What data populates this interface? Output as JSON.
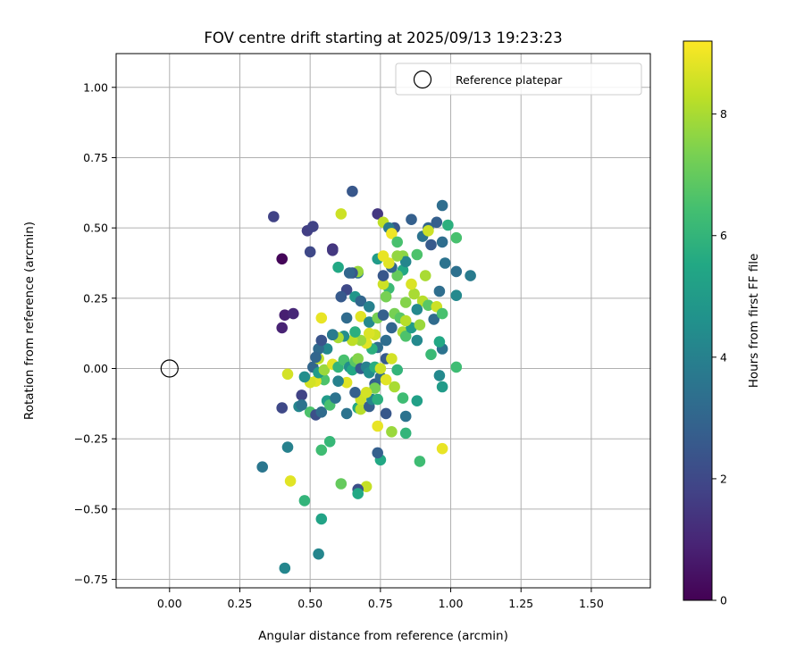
{
  "chart_data": {
    "type": "scatter",
    "title": "FOV centre drift starting at 2025/09/13 19:23:23",
    "xlabel": "Angular distance from reference (arcmin)",
    "ylabel": "Rotation from reference (arcmin)",
    "colorbar_label": "Hours from first FF file",
    "xlim": [
      -0.19,
      1.71
    ],
    "ylim": [
      -0.78,
      1.12
    ],
    "clim": [
      0,
      9.2
    ],
    "colormap": "viridis",
    "grid": true,
    "legend_position": "top-right",
    "x_ticks": [
      "0.00",
      "0.25",
      "0.50",
      "0.75",
      "1.00",
      "1.25",
      "1.50"
    ],
    "y_ticks": [
      "−0.75",
      "−0.50",
      "−0.25",
      "0.00",
      "0.25",
      "0.50",
      "0.75",
      "1.00"
    ],
    "colorbar_ticks": [
      "0",
      "2",
      "4",
      "6",
      "8"
    ],
    "reference": {
      "name": "Reference platepar",
      "x": 0.0,
      "y": 0.0
    },
    "points": [
      [
        0.4,
        0.39,
        0.1
      ],
      [
        0.41,
        0.19,
        0.8
      ],
      [
        0.44,
        0.195,
        1.0
      ],
      [
        0.4,
        0.145,
        0.9
      ],
      [
        0.37,
        0.54,
        1.8
      ],
      [
        0.49,
        0.49,
        1.7
      ],
      [
        0.51,
        0.505,
        1.8
      ],
      [
        0.5,
        0.415,
        2.0
      ],
      [
        0.58,
        0.425,
        1.3
      ],
      [
        0.58,
        0.42,
        1.5
      ],
      [
        0.65,
        0.63,
        2.5
      ],
      [
        0.74,
        0.55,
        1.5
      ],
      [
        0.8,
        0.5,
        2.5
      ],
      [
        0.86,
        0.53,
        2.8
      ],
      [
        0.97,
        0.58,
        3.3
      ],
      [
        0.92,
        0.5,
        3.0
      ],
      [
        0.95,
        0.52,
        2.8
      ],
      [
        0.99,
        0.51,
        5.8
      ],
      [
        1.02,
        0.465,
        6.5
      ],
      [
        0.9,
        0.47,
        3.5
      ],
      [
        0.93,
        0.44,
        2.6
      ],
      [
        0.98,
        0.375,
        3.5
      ],
      [
        1.02,
        0.345,
        3.4
      ],
      [
        1.07,
        0.33,
        3.8
      ],
      [
        1.02,
        0.26,
        4.3
      ],
      [
        0.96,
        0.275,
        3.3
      ],
      [
        0.94,
        0.175,
        3.2
      ],
      [
        0.97,
        0.07,
        3.5
      ],
      [
        1.02,
        0.005,
        6.3
      ],
      [
        0.96,
        0.095,
        5.5
      ],
      [
        0.93,
        0.05,
        6.2
      ],
      [
        0.96,
        -0.025,
        4.3
      ],
      [
        0.97,
        -0.065,
        5.0
      ],
      [
        0.88,
        -0.115,
        5.2
      ],
      [
        0.84,
        -0.17,
        3.5
      ],
      [
        0.84,
        -0.23,
        6.0
      ],
      [
        0.89,
        -0.33,
        6.3
      ],
      [
        0.97,
        -0.285,
        8.9
      ],
      [
        0.79,
        -0.225,
        7.8
      ],
      [
        0.74,
        -0.205,
        8.9
      ],
      [
        0.75,
        -0.325,
        5.5
      ],
      [
        0.74,
        -0.3,
        2.8
      ],
      [
        0.7,
        -0.42,
        8.4
      ],
      [
        0.67,
        -0.43,
        2.2
      ],
      [
        0.67,
        -0.445,
        5.5
      ],
      [
        0.61,
        -0.41,
        7.0
      ],
      [
        0.57,
        -0.26,
        6.1
      ],
      [
        0.54,
        -0.29,
        6.3
      ],
      [
        0.54,
        -0.535,
        5.3
      ],
      [
        0.53,
        -0.66,
        4.2
      ],
      [
        0.48,
        -0.47,
        6.0
      ],
      [
        0.43,
        -0.4,
        8.8
      ],
      [
        0.42,
        -0.28,
        4.0
      ],
      [
        0.33,
        -0.35,
        3.6
      ],
      [
        0.41,
        -0.71,
        4.2
      ],
      [
        0.4,
        -0.14,
        2.0
      ],
      [
        0.47,
        -0.095,
        1.8
      ],
      [
        0.46,
        -0.135,
        4.2
      ],
      [
        0.5,
        -0.155,
        6.6
      ],
      [
        0.52,
        -0.165,
        2.2
      ],
      [
        0.54,
        -0.155,
        3.2
      ],
      [
        0.56,
        -0.115,
        5.0
      ],
      [
        0.57,
        -0.13,
        6.5
      ],
      [
        0.59,
        -0.105,
        3.5
      ],
      [
        0.63,
        -0.16,
        3.5
      ],
      [
        0.67,
        -0.14,
        5.5
      ],
      [
        0.68,
        -0.145,
        8.2
      ],
      [
        0.68,
        -0.11,
        8.5
      ],
      [
        0.71,
        -0.135,
        2.8
      ],
      [
        0.72,
        -0.11,
        4.2
      ],
      [
        0.74,
        -0.11,
        5.8
      ],
      [
        0.77,
        -0.16,
        2.5
      ],
      [
        0.8,
        -0.065,
        8.0
      ],
      [
        0.83,
        -0.105,
        6.3
      ],
      [
        0.73,
        -0.055,
        2.8
      ],
      [
        0.75,
        -0.03,
        3.2
      ],
      [
        0.77,
        -0.04,
        8.8
      ],
      [
        0.73,
        -0.07,
        7.3
      ],
      [
        0.7,
        -0.085,
        8.6
      ],
      [
        0.66,
        -0.085,
        2.8
      ],
      [
        0.63,
        -0.05,
        8.8
      ],
      [
        0.6,
        -0.045,
        4.0
      ],
      [
        0.55,
        -0.04,
        6.6
      ],
      [
        0.52,
        -0.045,
        8.8
      ],
      [
        0.5,
        -0.05,
        8.6
      ],
      [
        0.48,
        -0.03,
        4.5
      ],
      [
        0.47,
        -0.13,
        3.5
      ],
      [
        0.42,
        -0.02,
        8.6
      ],
      [
        0.51,
        0.005,
        3.0
      ],
      [
        0.53,
        -0.015,
        5.0
      ],
      [
        0.53,
        0.035,
        8.3
      ],
      [
        0.55,
        -0.005,
        7.8
      ],
      [
        0.58,
        0.015,
        8.8
      ],
      [
        0.6,
        0.005,
        6.0
      ],
      [
        0.62,
        0.03,
        6.5
      ],
      [
        0.64,
        0.005,
        4.5
      ],
      [
        0.65,
        -0.005,
        5.5
      ],
      [
        0.66,
        0.025,
        6.8
      ],
      [
        0.67,
        0.035,
        7.5
      ],
      [
        0.68,
        0.0,
        2.6
      ],
      [
        0.7,
        0.005,
        4.0
      ],
      [
        0.71,
        -0.015,
        4.5
      ],
      [
        0.73,
        0.005,
        5.7
      ],
      [
        0.75,
        0.0,
        8.5
      ],
      [
        0.77,
        0.035,
        2.6
      ],
      [
        0.79,
        0.035,
        8.6
      ],
      [
        0.81,
        -0.005,
        6.0
      ],
      [
        0.74,
        0.075,
        3.3
      ],
      [
        0.72,
        0.07,
        5.8
      ],
      [
        0.7,
        0.09,
        8.8
      ],
      [
        0.73,
        0.12,
        8.5
      ],
      [
        0.68,
        0.1,
        7.8
      ],
      [
        0.65,
        0.1,
        8.3
      ],
      [
        0.62,
        0.115,
        4.5
      ],
      [
        0.6,
        0.11,
        8.0
      ],
      [
        0.58,
        0.12,
        2.6
      ],
      [
        0.56,
        0.07,
        4.3
      ],
      [
        0.53,
        0.07,
        3.2
      ],
      [
        0.54,
        0.1,
        2.4
      ],
      [
        0.52,
        0.04,
        3.0
      ],
      [
        0.54,
        0.18,
        8.9
      ],
      [
        0.58,
        0.12,
        3.8
      ],
      [
        0.63,
        0.18,
        3.2
      ],
      [
        0.66,
        0.13,
        5.8
      ],
      [
        0.68,
        0.185,
        8.8
      ],
      [
        0.71,
        0.165,
        4.3
      ],
      [
        0.71,
        0.125,
        8.7
      ],
      [
        0.74,
        0.18,
        7.3
      ],
      [
        0.77,
        0.1,
        3.3
      ],
      [
        0.79,
        0.145,
        3.0
      ],
      [
        0.8,
        0.195,
        7.3
      ],
      [
        0.82,
        0.18,
        6.8
      ],
      [
        0.83,
        0.13,
        8.0
      ],
      [
        0.84,
        0.115,
        6.6
      ],
      [
        0.86,
        0.145,
        5.0
      ],
      [
        0.88,
        0.1,
        4.3
      ],
      [
        0.89,
        0.155,
        7.8
      ],
      [
        0.9,
        0.24,
        8.2
      ],
      [
        0.92,
        0.225,
        6.8
      ],
      [
        0.95,
        0.22,
        8.5
      ],
      [
        0.97,
        0.195,
        6.5
      ],
      [
        0.88,
        0.21,
        4.3
      ],
      [
        0.87,
        0.265,
        8.0
      ],
      [
        0.86,
        0.3,
        8.7
      ],
      [
        0.84,
        0.235,
        7.5
      ],
      [
        0.83,
        0.35,
        5.5
      ],
      [
        0.81,
        0.33,
        7.0
      ],
      [
        0.79,
        0.36,
        3.0
      ],
      [
        0.78,
        0.285,
        6.2
      ],
      [
        0.77,
        0.255,
        7.3
      ],
      [
        0.76,
        0.3,
        8.5
      ],
      [
        0.76,
        0.33,
        2.5
      ],
      [
        0.74,
        0.39,
        5.0
      ],
      [
        0.67,
        0.34,
        3.5
      ],
      [
        0.67,
        0.345,
        7.8
      ],
      [
        0.65,
        0.34,
        2.5
      ],
      [
        0.64,
        0.34,
        3.0
      ],
      [
        0.63,
        0.28,
        2.0
      ],
      [
        0.61,
        0.255,
        2.6
      ],
      [
        0.6,
        0.36,
        5.5
      ],
      [
        0.61,
        0.55,
        8.5
      ],
      [
        0.66,
        0.255,
        4.8
      ],
      [
        0.68,
        0.24,
        3.0
      ],
      [
        0.71,
        0.22,
        4.0
      ],
      [
        0.76,
        0.52,
        8.3
      ],
      [
        0.78,
        0.5,
        3.8
      ],
      [
        0.79,
        0.48,
        9.0
      ],
      [
        0.81,
        0.45,
        6.5
      ],
      [
        0.83,
        0.4,
        7.6
      ],
      [
        0.84,
        0.38,
        4.2
      ],
      [
        0.81,
        0.4,
        7.7
      ],
      [
        0.78,
        0.375,
        8.8
      ],
      [
        0.76,
        0.4,
        8.9
      ],
      [
        0.76,
        0.19,
        2.8
      ],
      [
        0.84,
        0.17,
        8.2
      ],
      [
        0.92,
        0.49,
        8.5
      ],
      [
        0.88,
        0.405,
        6.6
      ],
      [
        0.91,
        0.33,
        8.0
      ],
      [
        0.97,
        0.45,
        3.3
      ]
    ]
  }
}
